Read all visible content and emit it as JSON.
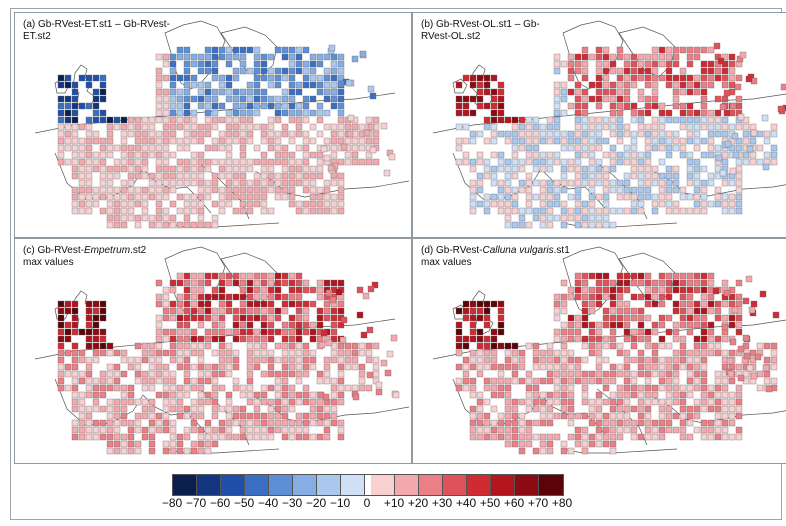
{
  "panels": [
    {
      "id": "a",
      "label_line1": "(a) Gb-RVest-ET.st1 – Gb-RVest-",
      "label_line2": "ET.st2",
      "italic_part": "",
      "palette": "diverging-blue"
    },
    {
      "id": "b",
      "label_line1": "(b) Gb-RVest-OL.st1 – Gb-",
      "label_line2": "RVest-OL.st2",
      "italic_part": "",
      "palette": "diverging-red"
    },
    {
      "id": "c",
      "label_prefix": "(c) Gb-RVest-",
      "label_italic": "Empetrum",
      "label_suffix": ".st2",
      "label_line2": "max values",
      "palette": "positive-red"
    },
    {
      "id": "d",
      "label_prefix": "(d) Gb-RVest-",
      "label_italic": "Calluna vulgaris",
      "label_suffix": ".st1",
      "label_line2": "max values",
      "palette": "positive-red"
    }
  ],
  "legend": {
    "ticks": [
      "−80",
      "−70",
      "−60",
      "−50",
      "−40",
      "−30",
      "−20",
      "−10",
      "0",
      "+10",
      "+20",
      "+30",
      "+40",
      "+50",
      "+60",
      "+70",
      "+80"
    ],
    "neg_colors": [
      "#0b1f4f",
      "#14357f",
      "#1f4fa8",
      "#3a6fc4",
      "#5d8fd6",
      "#86aee4",
      "#aac8ee",
      "#cfe0f6"
    ],
    "pos_colors": [
      "#f8d0d2",
      "#f2aaae",
      "#ea7f85",
      "#e0525a",
      "#d02a33",
      "#b3151e",
      "#8c0b13",
      "#5a0308"
    ]
  }
}
